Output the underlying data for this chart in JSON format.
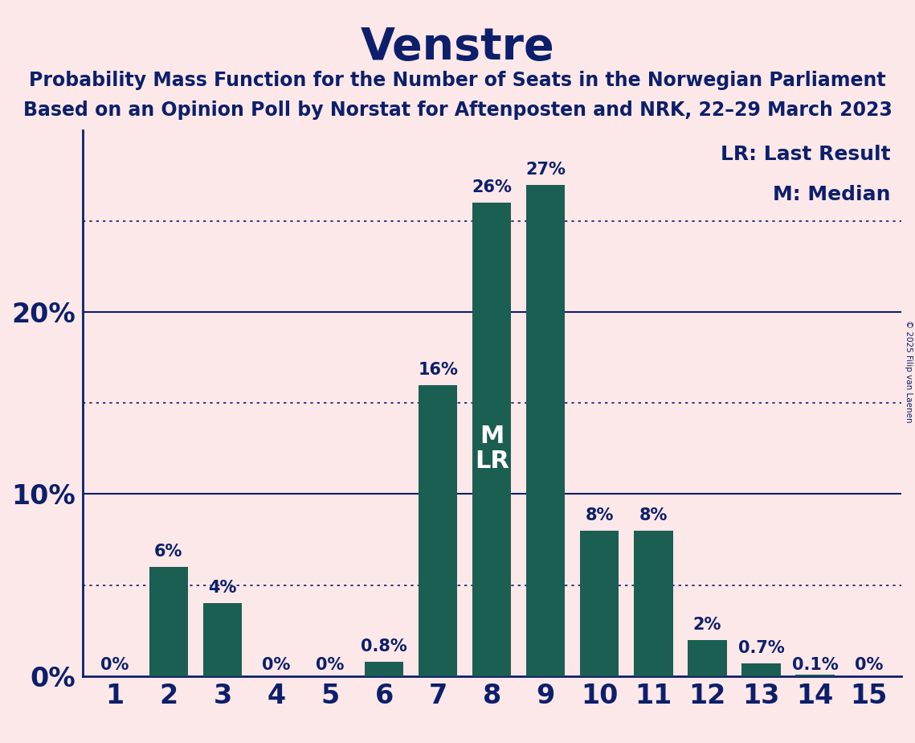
{
  "title": "Venstre",
  "subtitle_line1": "Probability Mass Function for the Number of Seats in the Norwegian Parliament",
  "subtitle_line2": "Based on an Opinion Poll by Norstat for Aftenposten and NRK, 22–29 March 2023",
  "categories": [
    1,
    2,
    3,
    4,
    5,
    6,
    7,
    8,
    9,
    10,
    11,
    12,
    13,
    14,
    15
  ],
  "values": [
    0.0,
    6.0,
    4.0,
    0.0,
    0.0,
    0.8,
    16.0,
    26.0,
    27.0,
    8.0,
    8.0,
    2.0,
    0.7,
    0.1,
    0.0
  ],
  "labels": [
    "0%",
    "6%",
    "4%",
    "0%",
    "0%",
    "0.8%",
    "16%",
    "26%",
    "27%",
    "8%",
    "8%",
    "2%",
    "0.7%",
    "0.1%",
    "0%"
  ],
  "bar_color": "#1b5e52",
  "background_color": "#fce8e8",
  "title_color": "#0d1f6b",
  "subtitle_color": "#0d1f6b",
  "axis_label_color": "#0d1f6b",
  "tick_label_color": "#0d1f6b",
  "bar_label_color": "#0d1f6b",
  "inner_label_color": "#ffffff",
  "grid_color": "#0d1f6b",
  "axis_line_color": "#0d1f6b",
  "legend_line1": "LR: Last Result",
  "legend_line2": "M: Median",
  "yticks": [
    0,
    10,
    20
  ],
  "dotted_yticks": [
    5,
    15,
    25
  ],
  "ylim": [
    0,
    30
  ],
  "copyright_text": "© 2025 Filip van Laenen"
}
